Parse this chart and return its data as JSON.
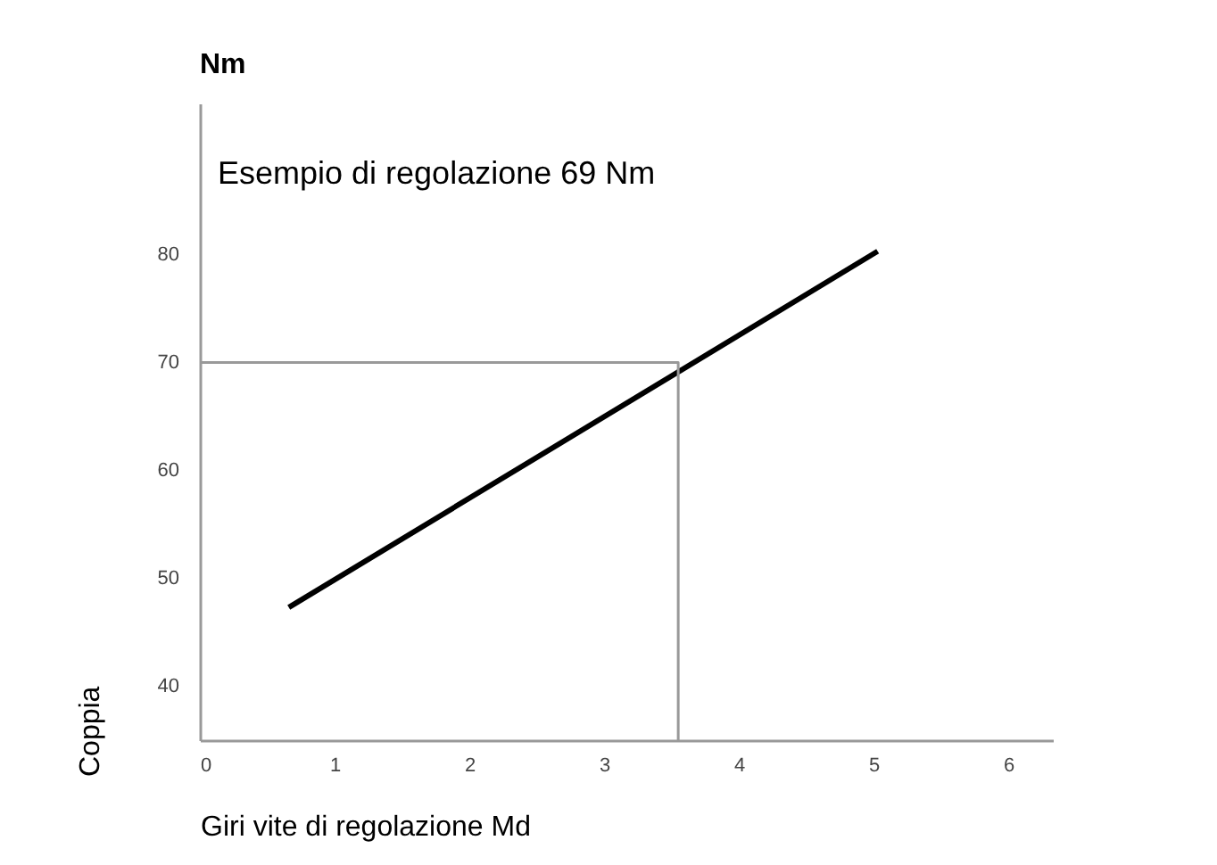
{
  "chart_data": {
    "type": "line",
    "xlabel": "Giri vite di regolazione Md",
    "ylabel": "Coppia",
    "annotations": [
      "Nm",
      "Esempio di regolazione 69 Nm"
    ],
    "series": [
      {
        "color": "#000000",
        "x": [
          0.66,
          5.03
        ],
        "values": [
          47.3,
          80.3
        ]
      },
      {
        "color": "#999999",
        "x": [
          0,
          3.55,
          3.55
        ],
        "values": [
          70,
          70,
          35
        ]
      }
    ],
    "xlim": [
      0,
      6.33
    ],
    "ylim": [
      35,
      94
    ],
    "xticks": [
      0,
      1,
      2,
      3,
      4,
      5,
      6
    ],
    "yticks": [
      40,
      50,
      60,
      70,
      80
    ],
    "grid": false,
    "marker": "none",
    "line_style": "solid"
  }
}
